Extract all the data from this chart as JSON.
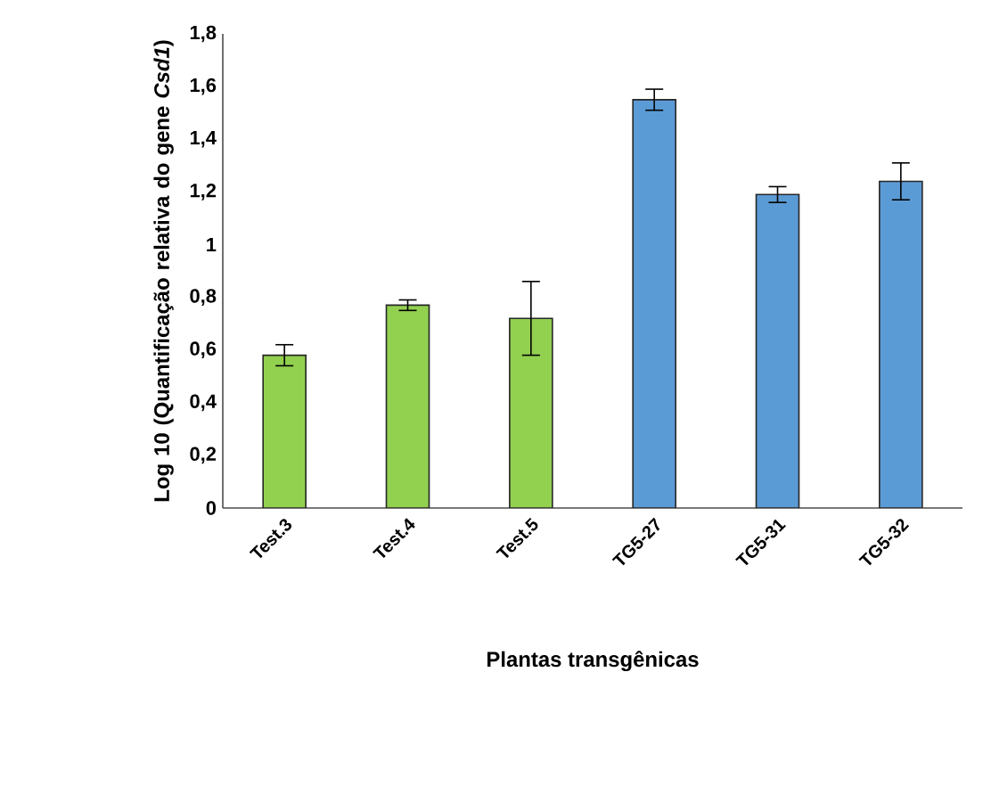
{
  "chart_data": {
    "type": "bar",
    "xlabel": "Plantas transgênicas",
    "ylabel": "Log 10 (Quantificação relativa do gene *Csd1*)",
    "categories": [
      "Test.3",
      "Test.4",
      "Test.5",
      "TG5-27",
      "TG5-31",
      "TG5-32"
    ],
    "values": [
      0.58,
      0.77,
      0.72,
      1.55,
      1.19,
      1.24
    ],
    "errors": [
      0.04,
      0.02,
      0.14,
      0.04,
      0.03,
      0.07
    ],
    "colors": [
      "#92d050",
      "#92d050",
      "#92d050",
      "#5b9bd5",
      "#5b9bd5",
      "#5b9bd5"
    ],
    "ylim": [
      0,
      1.8
    ],
    "yticks": [
      0,
      {
        "value": 0.2,
        "label": "0,2"
      },
      {
        "value": 0.4,
        "label": "0,4"
      },
      {
        "value": 0.6,
        "label": "0,6"
      },
      {
        "value": 0.8,
        "label": "0,8"
      },
      1,
      {
        "value": 1.2,
        "label": "1,2"
      },
      {
        "value": 1.4,
        "label": "1,4"
      },
      {
        "value": 1.6,
        "label": "1,6"
      },
      {
        "value": 1.8,
        "label": "1,8"
      }
    ],
    "grid": false
  }
}
